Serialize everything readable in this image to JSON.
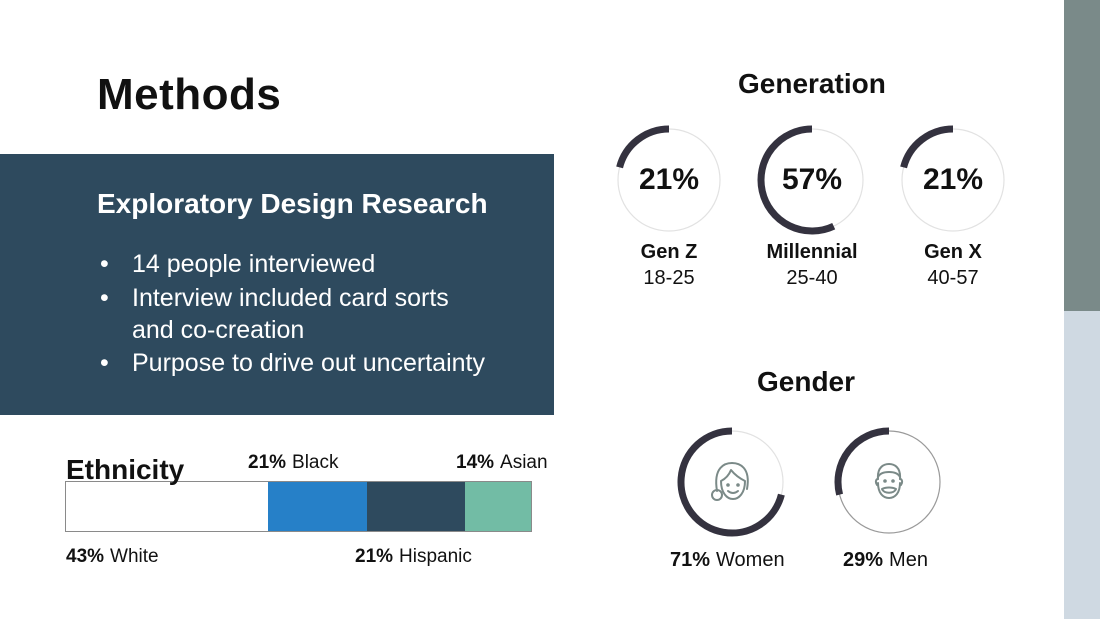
{
  "slide": {
    "title": "Methods",
    "colors": {
      "panel": "#2e4a5e",
      "ring": "#34323f",
      "ring_track": "#e2e2e2",
      "side_top": "#7a8a89",
      "side_bottom": "#cfd9e2",
      "icon": "#7b8a88"
    }
  },
  "research": {
    "title": "Exploratory Design Research",
    "bullets": [
      {
        "bullet": "•",
        "text": "14 people  interviewed"
      },
      {
        "bullet": "•",
        "text": "Interview included card sorts"
      },
      {
        "bullet": "",
        "text": "and co-creation"
      },
      {
        "bullet": "•",
        "text": "Purpose to drive out uncertainty"
      }
    ]
  },
  "generation": {
    "heading": "Generation",
    "items": [
      {
        "percent_label": "21%",
        "value": 21,
        "name": "Gen Z",
        "range": "18-25"
      },
      {
        "percent_label": "57%",
        "value": 57,
        "name": "Millennial",
        "range": "25-40"
      },
      {
        "percent_label": "21%",
        "value": 21,
        "name": "Gen X",
        "range": "40-57"
      }
    ]
  },
  "gender": {
    "heading": "Gender",
    "items": [
      {
        "percent_label": "71%",
        "value": 71,
        "name": "Women",
        "icon": "woman-face-icon"
      },
      {
        "percent_label": "29%",
        "value": 29,
        "name": "Men",
        "icon": "bearded-man-face-icon"
      }
    ]
  },
  "ethnicity": {
    "heading": "Ethnicity",
    "segments": [
      {
        "percent_label": "43%",
        "value": 43,
        "name": "White",
        "color": "#ffffff"
      },
      {
        "percent_label": "21%",
        "value": 21,
        "name": "Black",
        "color": "#2680c8"
      },
      {
        "percent_label": "21%",
        "value": 21,
        "name": "Hispanic",
        "color": "#2e4a5e"
      },
      {
        "percent_label": "14%",
        "value": 14,
        "name": "Asian",
        "color": "#72bca5"
      }
    ]
  }
}
